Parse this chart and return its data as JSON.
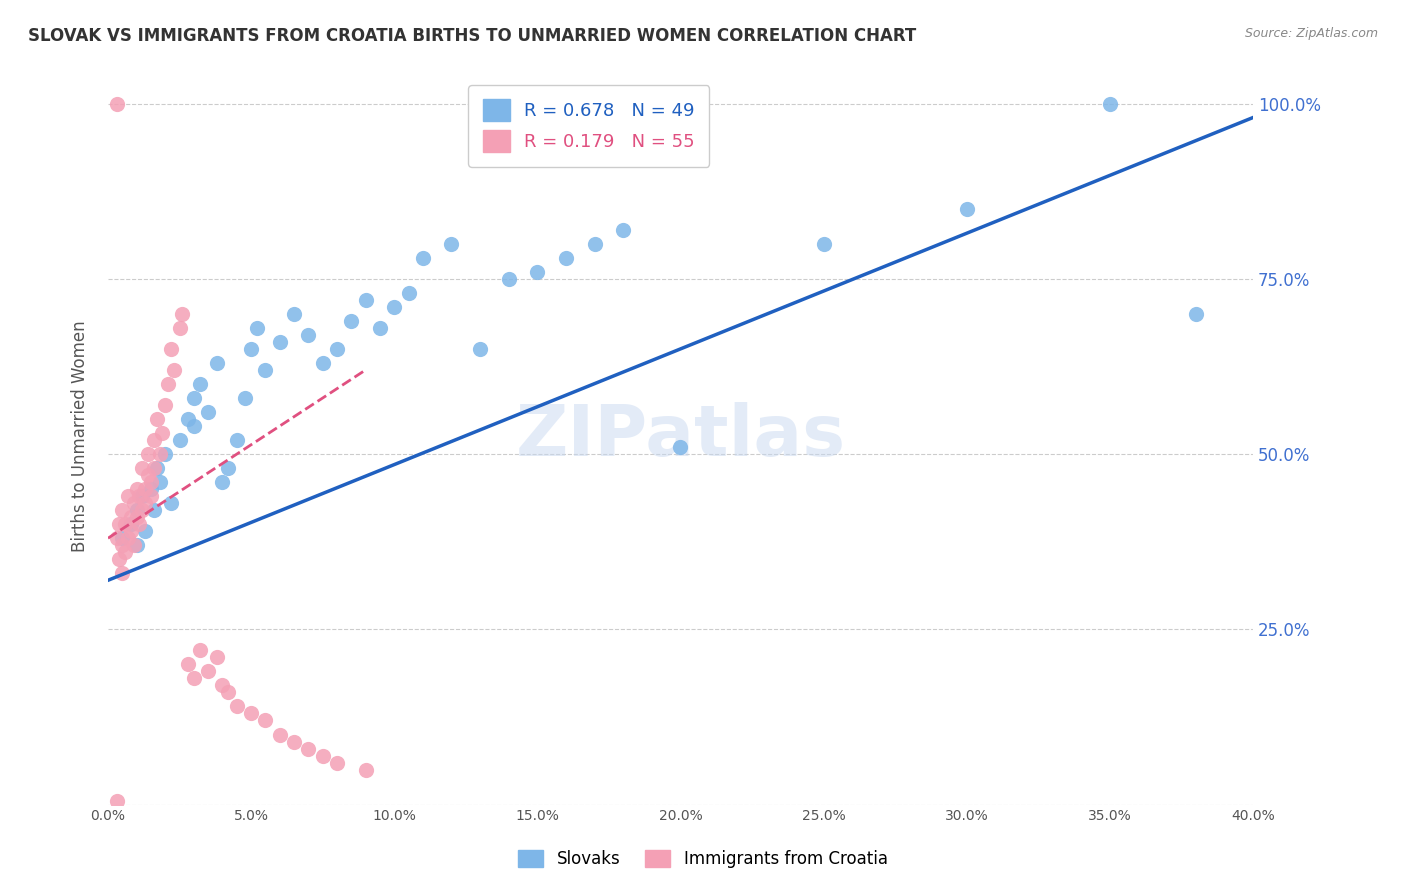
{
  "title": "SLOVAK VS IMMIGRANTS FROM CROATIA BIRTHS TO UNMARRIED WOMEN CORRELATION CHART",
  "source": "Source: ZipAtlas.com",
  "ylabel": "Births to Unmarried Women",
  "right_yticks": [
    "100.0%",
    "75.0%",
    "50.0%",
    "25.0%"
  ],
  "right_ytick_vals": [
    1.0,
    0.75,
    0.5,
    0.25
  ],
  "watermark": "ZIPatlas",
  "blue_R": "0.678",
  "blue_N": "49",
  "pink_R": "0.179",
  "pink_N": "55",
  "blue_color": "#7EB6E8",
  "pink_color": "#F4A0B5",
  "blue_line_color": "#2060C0",
  "pink_line_color": "#E05080",
  "grid_color": "#CCCCCC",
  "title_color": "#333333",
  "right_tick_color": "#4070D0",
  "legend_blue_label": "Slovaks",
  "legend_pink_label": "Immigrants from Croatia",
  "xlim": [
    0.0,
    0.4
  ],
  "ylim": [
    0.0,
    1.05
  ],
  "blue_scatter_x": [
    0.005,
    0.008,
    0.01,
    0.01,
    0.012,
    0.013,
    0.015,
    0.016,
    0.017,
    0.018,
    0.02,
    0.022,
    0.025,
    0.028,
    0.03,
    0.03,
    0.032,
    0.035,
    0.038,
    0.04,
    0.042,
    0.045,
    0.048,
    0.05,
    0.052,
    0.055,
    0.06,
    0.065,
    0.07,
    0.075,
    0.08,
    0.085,
    0.09,
    0.095,
    0.1,
    0.105,
    0.11,
    0.12,
    0.13,
    0.14,
    0.15,
    0.16,
    0.17,
    0.18,
    0.2,
    0.25,
    0.3,
    0.35,
    0.38
  ],
  "blue_scatter_y": [
    0.38,
    0.4,
    0.37,
    0.42,
    0.44,
    0.39,
    0.45,
    0.42,
    0.48,
    0.46,
    0.5,
    0.43,
    0.52,
    0.55,
    0.58,
    0.54,
    0.6,
    0.56,
    0.63,
    0.46,
    0.48,
    0.52,
    0.58,
    0.65,
    0.68,
    0.62,
    0.66,
    0.7,
    0.67,
    0.63,
    0.65,
    0.69,
    0.72,
    0.68,
    0.71,
    0.73,
    0.78,
    0.8,
    0.65,
    0.75,
    0.76,
    0.78,
    0.8,
    0.82,
    0.51,
    0.8,
    0.85,
    1.0,
    0.7
  ],
  "pink_scatter_x": [
    0.003,
    0.003,
    0.004,
    0.004,
    0.005,
    0.005,
    0.005,
    0.006,
    0.006,
    0.007,
    0.007,
    0.008,
    0.008,
    0.009,
    0.009,
    0.01,
    0.01,
    0.011,
    0.011,
    0.012,
    0.012,
    0.013,
    0.013,
    0.014,
    0.014,
    0.015,
    0.015,
    0.016,
    0.016,
    0.017,
    0.018,
    0.019,
    0.02,
    0.021,
    0.022,
    0.023,
    0.025,
    0.026,
    0.028,
    0.03,
    0.032,
    0.035,
    0.038,
    0.04,
    0.042,
    0.045,
    0.05,
    0.055,
    0.06,
    0.065,
    0.07,
    0.075,
    0.08,
    0.09,
    0.003
  ],
  "pink_scatter_y": [
    0.005,
    0.38,
    0.35,
    0.4,
    0.33,
    0.37,
    0.42,
    0.36,
    0.4,
    0.38,
    0.44,
    0.41,
    0.39,
    0.37,
    0.43,
    0.41,
    0.45,
    0.4,
    0.44,
    0.42,
    0.48,
    0.45,
    0.43,
    0.47,
    0.5,
    0.44,
    0.46,
    0.48,
    0.52,
    0.55,
    0.5,
    0.53,
    0.57,
    0.6,
    0.65,
    0.62,
    0.68,
    0.7,
    0.2,
    0.18,
    0.22,
    0.19,
    0.21,
    0.17,
    0.16,
    0.14,
    0.13,
    0.12,
    0.1,
    0.09,
    0.08,
    0.07,
    0.06,
    0.05,
    1.0
  ],
  "blue_line_x": [
    0.0,
    0.4
  ],
  "blue_line_y": [
    0.32,
    0.98
  ],
  "pink_line_x": [
    0.0,
    0.09
  ],
  "pink_line_y": [
    0.38,
    0.62
  ]
}
